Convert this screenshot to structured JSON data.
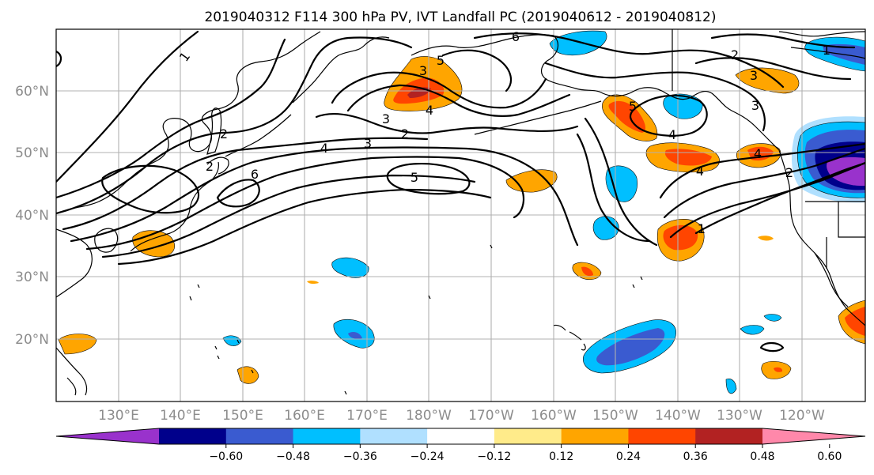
{
  "title": "2019040312 F114 300 hPa PV, IVT Landfall PC (2019040612 - 2019040812)",
  "lat_labels": [
    "20°N",
    "30°N",
    "40°N",
    "50°N",
    "60°N"
  ],
  "lon_labels": [
    "130°E",
    "140°E",
    "150°E",
    "160°E",
    "170°E",
    "180°W",
    "170°W",
    "160°W",
    "150°W",
    "140°W",
    "130°W",
    "120°W"
  ],
  "colorbar": {
    "ticks": [
      "−0.60",
      "−0.48",
      "−0.36",
      "−0.24",
      "−0.12",
      "0.12",
      "0.24",
      "0.36",
      "0.48",
      "0.60"
    ],
    "colors": [
      "#9932cc",
      "#00008b",
      "#3a5bd0",
      "#00bfff",
      "#b0e0ff",
      "#ffffff",
      "#ffeb8a",
      "#ffa500",
      "#ff4500",
      "#b22222",
      "#ff88aa"
    ]
  },
  "contour_labels": [
    "1",
    "2",
    "3",
    "4",
    "5",
    "6",
    "2",
    "3",
    "4",
    "5",
    "3",
    "2",
    "4",
    "5",
    "4",
    "4",
    "3",
    "2",
    "1",
    "2",
    "3",
    "1",
    "6"
  ]
}
